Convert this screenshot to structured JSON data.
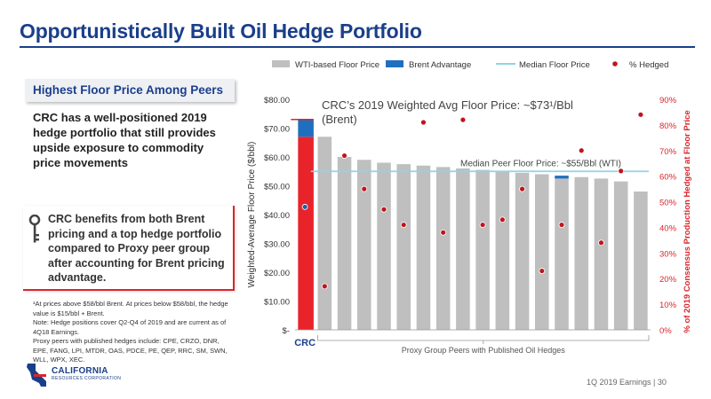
{
  "page": {
    "title": "Opportunistically Built Oil Hedge Portfolio",
    "callout_title": "Highest Floor Price Among Peers",
    "blurb": "CRC has a well-positioned 2019 hedge portfolio that still provides upside exposure to commodity price movements",
    "key_text": "CRC benefits from both Brent pricing and a top hedge portfolio compared to Proxy peer group after accounting for Brent pricing advantage.",
    "footnotes": [
      "¹At prices above $58/bbl Brent. At prices below $58/bbl, the hedge value is $15/bbl + Brent.",
      "Note: Hedge positions cover Q2-Q4 of 2019 and are current as of 4Q18 Earnings.",
      "Proxy peers with published hedges include: CPE, CRZO, DNR, EPE, FANG, LPI, MTDR, OAS, PDCE, PE, QEP, RRC, SM, SWN, WLL, WPX, XEC."
    ],
    "logo_text": "CALIFORNIA",
    "logo_sub": "RESOURCES CORPORATION",
    "footer": "1Q 2019 Earnings | 30",
    "colors": {
      "brand_blue": "#1a3f8a",
      "accent_red": "#d9262c"
    },
    "icons": {
      "key": "key-icon",
      "logo": "california-state-icon"
    }
  },
  "chart_data": {
    "type": "bar",
    "legend": [
      "WTI-based Floor Price",
      "Brent Advantage",
      "Median Floor Price",
      "% Hedged"
    ],
    "legend_position": "top",
    "ylabel": "Weighted-Average Floor Price ($/bbl)",
    "y2label": "% of 2019 Consensus Production Hedged at Floor Price",
    "xlabel": "Proxy Group Peers with Published Oil Hedges",
    "crc_label": "CRC",
    "ylim": [
      0,
      80
    ],
    "y2lim": [
      0,
      90
    ],
    "yticks": [
      "$-",
      "$10.00",
      "$20.00",
      "$30.00",
      "$40.00",
      "$50.00",
      "$60.00",
      "$70.00",
      "$80.00"
    ],
    "y2ticks": [
      "0%",
      "10%",
      "20%",
      "30%",
      "40%",
      "50%",
      "60%",
      "70%",
      "80%",
      "90%"
    ],
    "wti_floor": [
      67,
      67,
      60,
      59,
      58,
      57.5,
      57,
      56.5,
      56,
      55.5,
      55,
      54.5,
      54,
      52.5,
      53,
      52.5,
      51.5,
      48
    ],
    "brent_advantage": [
      6,
      0,
      0,
      0,
      0,
      0,
      0,
      0,
      0,
      0,
      0,
      0,
      0,
      1,
      0,
      0,
      0,
      0
    ],
    "crc_marker_color": "#d9262c",
    "median_floor": 55,
    "pct_hedged": [
      48,
      17,
      68,
      55,
      47,
      41,
      81,
      38,
      82,
      41,
      43,
      55,
      23,
      41,
      70,
      34,
      62,
      84
    ],
    "annotations": {
      "crc_avg": "CRC’s 2019 Weighted Avg Floor Price: ~$73¹/Bbl (Brent)",
      "median": "Median Peer Floor Price: ~$55/Bbl (WTI)"
    },
    "colors": {
      "wti": "#bfbfbf",
      "crc_wti": "#e8232a",
      "brent": "#1f6fbf",
      "median": "#8fd3ea",
      "hedged": "#c0141c",
      "crc_hedged": "#1f5fb0"
    }
  }
}
